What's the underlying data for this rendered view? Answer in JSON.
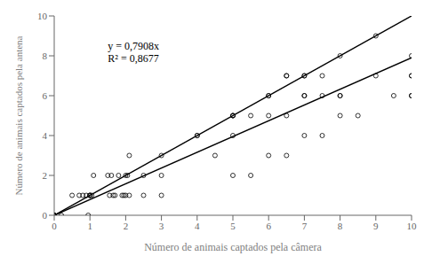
{
  "chart_data": {
    "type": "scatter",
    "xlabel": "Número de animais captados pela câmera",
    "ylabel": "Número de animais captados pela antena",
    "xlim": [
      0,
      10
    ],
    "ylim": [
      0,
      10
    ],
    "xticks": [
      0,
      1,
      2,
      3,
      4,
      5,
      6,
      7,
      8,
      9,
      10
    ],
    "yticks": [
      0,
      2,
      4,
      6,
      8,
      10
    ],
    "grid": false,
    "color": "#000000",
    "marker": "hollow circle",
    "x": [
      0.0,
      0.0,
      0.0,
      0.0,
      0.2,
      0.5,
      0.7,
      0.8,
      0.9,
      0.95,
      1.0,
      1.0,
      1.0,
      1.05,
      1.1,
      1.5,
      1.55,
      1.6,
      1.65,
      1.7,
      1.8,
      1.9,
      1.95,
      2.0,
      2.0,
      2.05,
      2.1,
      2.1,
      2.5,
      2.5,
      3.0,
      3.0,
      3.0,
      4.0,
      4.0,
      4.5,
      5.0,
      5.0,
      5.0,
      5.0,
      5.0,
      5.5,
      5.5,
      6.0,
      6.0,
      6.0,
      6.0,
      6.5,
      6.5,
      6.5,
      6.5,
      7.0,
      7.0,
      7.0,
      7.0,
      7.0,
      7.5,
      7.5,
      7.5,
      8.0,
      8.0,
      8.0,
      8.0,
      8.5,
      9.0,
      9.0,
      9.5,
      10.0,
      10.0,
      10.0,
      10.0,
      10.0
    ],
    "values": [
      0.0,
      0.0,
      0.0,
      0.0,
      0.0,
      1.0,
      1.0,
      1.0,
      1.0,
      0.0,
      1.0,
      1.0,
      1.0,
      1.0,
      2.0,
      2.0,
      1.0,
      2.0,
      1.0,
      1.0,
      2.0,
      1.0,
      1.0,
      1.0,
      2.0,
      2.0,
      3.0,
      1.0,
      1.0,
      2.0,
      2.0,
      3.0,
      1.0,
      4.0,
      4.0,
      3.0,
      5.0,
      5.0,
      4.0,
      5.0,
      2.0,
      2.0,
      5.0,
      6.0,
      6.0,
      5.0,
      3.0,
      7.0,
      7.0,
      5.0,
      3.0,
      7.0,
      7.0,
      6.0,
      6.0,
      4.0,
      6.0,
      7.0,
      4.0,
      8.0,
      6.0,
      5.0,
      6.0,
      5.0,
      9.0,
      7.0,
      6.0,
      7.0,
      7.0,
      6.0,
      8.0,
      6.0
    ],
    "lines": [
      {
        "x": [
          0,
          10
        ],
        "values": [
          0,
          7.908
        ],
        "color": "#000000"
      },
      {
        "x": [
          0,
          10
        ],
        "values": [
          0,
          10
        ],
        "color": "#000000"
      }
    ],
    "annotation": {
      "x": 1.5,
      "y": 8.8,
      "lines": [
        "y = 0,7908x",
        "R² = 0,8677"
      ]
    }
  }
}
